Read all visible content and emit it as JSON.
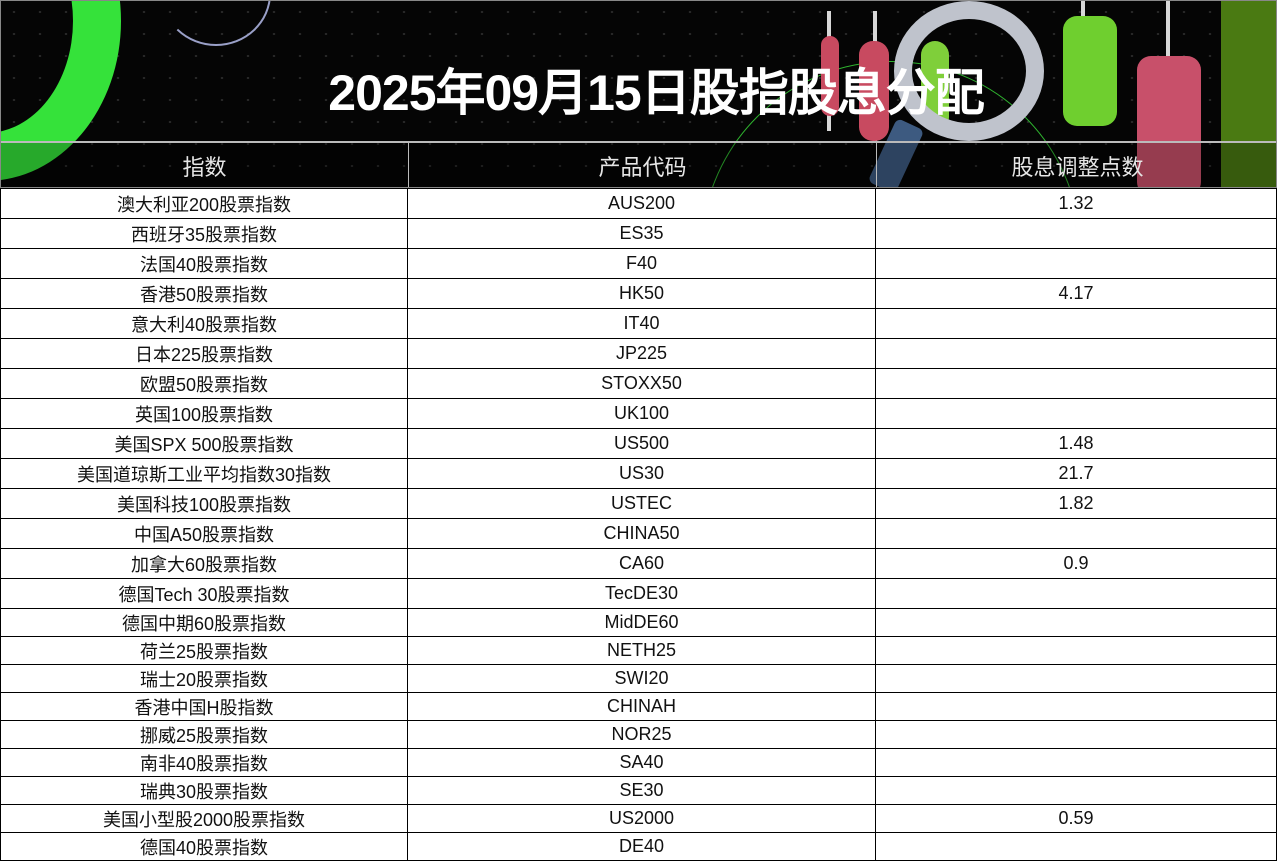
{
  "title": "2025年09月15日股指股息分配",
  "headers": [
    "指数",
    "产品代码",
    "股息调整点数"
  ],
  "rows": [
    [
      "澳大利亚200股票指数",
      "AUS200",
      "1.32"
    ],
    [
      "西班牙35股票指数",
      "ES35",
      ""
    ],
    [
      "法国40股票指数",
      "F40",
      ""
    ],
    [
      "香港50股票指数",
      "HK50",
      "4.17"
    ],
    [
      "意大利40股票指数",
      "IT40",
      ""
    ],
    [
      "日本225股票指数",
      "JP225",
      ""
    ],
    [
      "欧盟50股票指数",
      "STOXX50",
      ""
    ],
    [
      "英国100股票指数",
      "UK100",
      ""
    ],
    [
      "美国SPX 500股票指数",
      "US500",
      "1.48"
    ],
    [
      "美国道琼斯工业平均指数30指数",
      "US30",
      "21.7"
    ],
    [
      "美国科技100股票指数",
      "USTEC",
      "1.82"
    ],
    [
      "中国A50股票指数",
      "CHINA50",
      ""
    ],
    [
      "加拿大60股票指数",
      "CA60",
      "0.9"
    ],
    [
      "德国Tech 30股票指数",
      "TecDE30",
      ""
    ],
    [
      "德国中期60股票指数",
      "MidDE60",
      ""
    ],
    [
      "荷兰25股票指数",
      "NETH25",
      ""
    ],
    [
      "瑞士20股票指数",
      "SWI20",
      ""
    ],
    [
      "香港中国H股指数",
      "CHINAH",
      ""
    ],
    [
      "挪威25股票指数",
      "NOR25",
      ""
    ],
    [
      "南非40股票指数",
      "SA40",
      ""
    ],
    [
      "瑞典30股票指数",
      "SE30",
      ""
    ],
    [
      "美国小型股2000股票指数",
      "US2000",
      "0.59"
    ],
    [
      "德国40股票指数",
      "DE40",
      ""
    ]
  ]
}
